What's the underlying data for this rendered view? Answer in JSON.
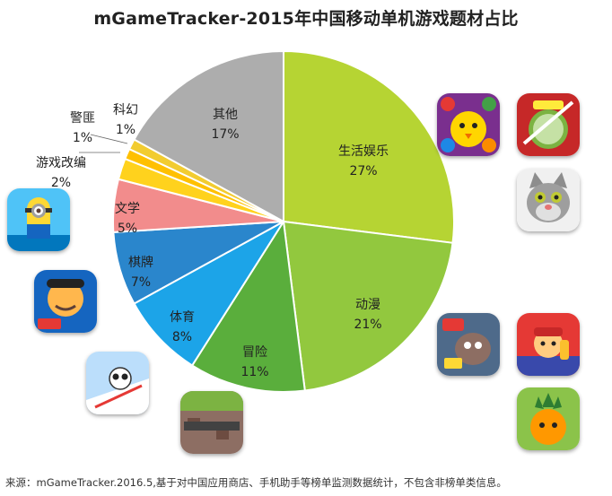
{
  "title": "mGameTracker-2015年中国移动单机游戏题材占比",
  "source": "来源：mGameTracker.2016.5,基于对中国应用商店、手机助手等榜单监测数据统计，不包含非榜单类信息。",
  "icons": [
    {
      "name": "toon-blast-birds-icon"
    },
    {
      "name": "fruit-ninja-icon"
    },
    {
      "name": "talking-tom-icon"
    },
    {
      "name": "plants-vs-zombies-icon"
    },
    {
      "name": "subway-surfers-icon"
    },
    {
      "name": "carrot-defense-icon"
    },
    {
      "name": "minion-rush-icon"
    },
    {
      "name": "doudizhu-card-game-icon"
    },
    {
      "name": "panda-ski-icon"
    },
    {
      "name": "minecraft-icon"
    }
  ],
  "chart_data": {
    "type": "pie",
    "title": "mGameTracker-2015年中国移动单机游戏题材占比",
    "slices": [
      {
        "label": "生活娱乐",
        "value": 27,
        "display": "27%",
        "color": "#b6d433"
      },
      {
        "label": "动漫",
        "value": 21,
        "display": "21%",
        "color": "#92c83e"
      },
      {
        "label": "冒险",
        "value": 11,
        "display": "11%",
        "color": "#5aae3c"
      },
      {
        "label": "体育",
        "value": 8,
        "display": "8%",
        "color": "#1ca4e8"
      },
      {
        "label": "棋牌",
        "value": 7,
        "display": "7%",
        "color": "#2a86cc"
      },
      {
        "label": "文学",
        "value": 5,
        "display": "5%",
        "color": "#f28c8c"
      },
      {
        "label": "游戏改编",
        "value": 2,
        "display": "2%",
        "color": "#ffd21d"
      },
      {
        "label": "警匪",
        "value": 1,
        "display": "1%",
        "color": "#ffc000"
      },
      {
        "label": "科幻",
        "value": 1,
        "display": "1%",
        "color": "#f2cc30"
      },
      {
        "label": "其他",
        "value": 17,
        "display": "17%",
        "color": "#adadad"
      }
    ]
  }
}
